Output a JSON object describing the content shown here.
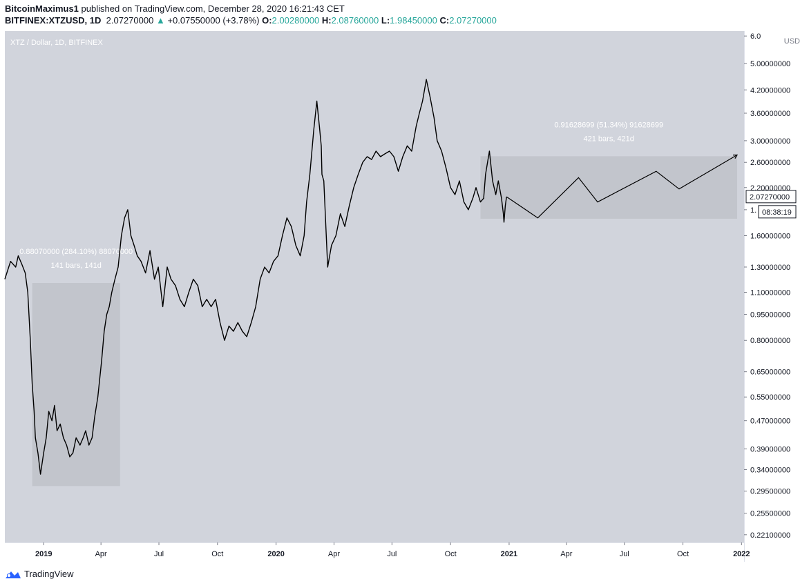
{
  "header": {
    "author": "BitcoinMaximus1",
    "published": "published on TradingView.com, December 28, 2020 16:21:43 CET"
  },
  "ohlc": {
    "symbol": "BITFINEX:XTZUSD, 1D",
    "last": "2.07270000",
    "change": "+0.07550000 (+3.78%)",
    "o_label": "O:",
    "o": "2.00280000",
    "h_label": "H:",
    "h": "2.08760000",
    "l_label": "L:",
    "l": "1.98450000",
    "c_label": "C:",
    "c": "2.07270000"
  },
  "footer": {
    "brand": "TradingView"
  },
  "colors": {
    "plot_bg": "#d1d4dc",
    "line": "#000000",
    "box": "#bfc2c9",
    "up": "#26a69a",
    "measure_text": "#ffffff"
  },
  "chart_data": {
    "type": "line",
    "title": "XTZ / Dollar, 1D, BITFINEX",
    "currency": "USD",
    "scale": "log",
    "ylim": [
      0.21,
      6.2
    ],
    "xlim": [
      "2018-11-01",
      "2022-01-05"
    ],
    "x_ticks": [
      {
        "date": "2019-01-01",
        "label": "2019"
      },
      {
        "date": "2019-04-01",
        "label": "Apr"
      },
      {
        "date": "2019-07-01",
        "label": "Jul"
      },
      {
        "date": "2019-10-01",
        "label": "Oct"
      },
      {
        "date": "2020-01-01",
        "label": "2020"
      },
      {
        "date": "2020-04-01",
        "label": "Apr"
      },
      {
        "date": "2020-07-01",
        "label": "Jul"
      },
      {
        "date": "2020-10-01",
        "label": "Oct"
      },
      {
        "date": "2021-01-01",
        "label": "2021"
      },
      {
        "date": "2021-04-01",
        "label": "Apr"
      },
      {
        "date": "2021-07-01",
        "label": "Jul"
      },
      {
        "date": "2021-10-01",
        "label": "Oct"
      },
      {
        "date": "2022-01-01",
        "label": "2022"
      }
    ],
    "y_ticks": [
      {
        "value": 6.0,
        "label": "6.0"
      },
      {
        "value": 5.0,
        "label": "5.00000000"
      },
      {
        "value": 4.2,
        "label": "4.20000000"
      },
      {
        "value": 3.6,
        "label": "3.60000000"
      },
      {
        "value": 3.0,
        "label": "3.00000000"
      },
      {
        "value": 2.6,
        "label": "2.60000000"
      },
      {
        "value": 2.2,
        "label": "2.20000000"
      },
      {
        "value": 1.9,
        "label": "1."
      },
      {
        "value": 1.6,
        "label": "1.60000000"
      },
      {
        "value": 1.3,
        "label": "1.30000000"
      },
      {
        "value": 1.1,
        "label": "1.10000000"
      },
      {
        "value": 0.95,
        "label": "0.95000000"
      },
      {
        "value": 0.8,
        "label": "0.80000000"
      },
      {
        "value": 0.65,
        "label": "0.65000000"
      },
      {
        "value": 0.55,
        "label": "0.55000000"
      },
      {
        "value": 0.47,
        "label": "0.47000000"
      },
      {
        "value": 0.39,
        "label": "0.39000000"
      },
      {
        "value": 0.34,
        "label": "0.34000000"
      },
      {
        "value": 0.295,
        "label": "0.29500000"
      },
      {
        "value": 0.255,
        "label": "0.25500000"
      },
      {
        "value": 0.221,
        "label": "0.22100000"
      }
    ],
    "price_label": {
      "value": 2.0727,
      "text": "2.07270000"
    },
    "countdown": "08:38:19",
    "series": [
      {
        "x": [
          "2018-11-01",
          "2018-11-10",
          "2018-11-18",
          "2018-11-22",
          "2018-11-28",
          "2018-12-03",
          "2018-12-07",
          "2018-12-11",
          "2018-12-14",
          "2018-12-17",
          "2018-12-19",
          "2018-12-23",
          "2018-12-27",
          "2019-01-01",
          "2019-01-05",
          "2019-01-09",
          "2019-01-14",
          "2019-01-18",
          "2019-01-22",
          "2019-01-27",
          "2019-02-01",
          "2019-02-06",
          "2019-02-11",
          "2019-02-16",
          "2019-02-21",
          "2019-02-27",
          "2019-03-04",
          "2019-03-08",
          "2019-03-13",
          "2019-03-18",
          "2019-03-22",
          "2019-03-27",
          "2019-04-02",
          "2019-04-06",
          "2019-04-10",
          "2019-04-14",
          "2019-04-18",
          "2019-04-23",
          "2019-04-28",
          "2019-05-03",
          "2019-05-08",
          "2019-05-13",
          "2019-05-18",
          "2019-05-23",
          "2019-05-28",
          "2019-06-03",
          "2019-06-10",
          "2019-06-17",
          "2019-06-24",
          "2019-06-30",
          "2019-07-07",
          "2019-07-14",
          "2019-07-20",
          "2019-07-27",
          "2019-08-03",
          "2019-08-10",
          "2019-08-17",
          "2019-08-24",
          "2019-08-31",
          "2019-09-07",
          "2019-09-14",
          "2019-09-21",
          "2019-09-28",
          "2019-10-05",
          "2019-10-12",
          "2019-10-19",
          "2019-10-26",
          "2019-11-02",
          "2019-11-09",
          "2019-11-16",
          "2019-11-23",
          "2019-11-30",
          "2019-12-07",
          "2019-12-14",
          "2019-12-21",
          "2019-12-28",
          "2020-01-04",
          "2020-01-11",
          "2020-01-18",
          "2020-01-25",
          "2020-02-01",
          "2020-02-08",
          "2020-02-14",
          "2020-02-18",
          "2020-02-23",
          "2020-02-29",
          "2020-03-05",
          "2020-03-09",
          "2020-03-12",
          "2020-03-13",
          "2020-03-16",
          "2020-03-22",
          "2020-03-28",
          "2020-04-04",
          "2020-04-11",
          "2020-04-18",
          "2020-04-25",
          "2020-05-02",
          "2020-05-09",
          "2020-05-16",
          "2020-05-23",
          "2020-05-30",
          "2020-06-06",
          "2020-06-13",
          "2020-06-20",
          "2020-06-27",
          "2020-07-04",
          "2020-07-11",
          "2020-07-18",
          "2020-07-25",
          "2020-08-01",
          "2020-08-08",
          "2020-08-13",
          "2020-08-18",
          "2020-08-24",
          "2020-08-30",
          "2020-09-05",
          "2020-09-10",
          "2020-09-17",
          "2020-09-24",
          "2020-10-01",
          "2020-10-08",
          "2020-10-15",
          "2020-10-22",
          "2020-10-29",
          "2020-11-05",
          "2020-11-10",
          "2020-11-17",
          "2020-11-22",
          "2020-11-25",
          "2020-12-01",
          "2020-12-06",
          "2020-12-11",
          "2020-12-15",
          "2020-12-20",
          "2020-12-23",
          "2020-12-24",
          "2020-12-26",
          "2020-12-28"
        ],
        "values": [
          1.2,
          1.35,
          1.3,
          1.4,
          1.32,
          1.25,
          1.1,
          0.8,
          0.6,
          0.5,
          0.42,
          0.38,
          0.33,
          0.38,
          0.42,
          0.5,
          0.47,
          0.52,
          0.44,
          0.46,
          0.42,
          0.4,
          0.37,
          0.38,
          0.42,
          0.4,
          0.42,
          0.44,
          0.4,
          0.42,
          0.48,
          0.55,
          0.7,
          0.85,
          0.95,
          1.0,
          1.1,
          1.2,
          1.3,
          1.6,
          1.8,
          1.9,
          1.6,
          1.5,
          1.4,
          1.35,
          1.25,
          1.45,
          1.2,
          1.3,
          1.0,
          1.3,
          1.2,
          1.15,
          1.05,
          1.0,
          1.1,
          1.2,
          1.15,
          1.0,
          1.05,
          1.0,
          1.05,
          0.9,
          0.8,
          0.88,
          0.85,
          0.9,
          0.85,
          0.82,
          0.9,
          1.0,
          1.2,
          1.3,
          1.25,
          1.35,
          1.4,
          1.6,
          1.8,
          1.7,
          1.5,
          1.4,
          1.6,
          2.0,
          2.4,
          3.2,
          3.9,
          3.3,
          2.9,
          2.4,
          2.3,
          1.3,
          1.5,
          1.6,
          1.85,
          1.7,
          1.95,
          2.2,
          2.4,
          2.6,
          2.7,
          2.65,
          2.8,
          2.7,
          2.75,
          2.8,
          2.7,
          2.45,
          2.7,
          2.9,
          2.8,
          3.3,
          3.6,
          3.9,
          4.5,
          4.0,
          3.5,
          3.0,
          2.8,
          2.5,
          2.2,
          2.1,
          2.3,
          2.0,
          1.9,
          2.05,
          2.2,
          2.0,
          2.05,
          2.4,
          2.8,
          2.3,
          2.1,
          2.3,
          2.05,
          1.85,
          1.75,
          1.95,
          2.07
        ]
      }
    ],
    "measure_boxes": [
      {
        "x0": "2018-12-14",
        "x1": "2019-05-01",
        "y0": 0.305,
        "y1": 1.17,
        "label_line1": "0.88070000 (284.10%) 88070000",
        "label_line2": "141 bars, 141d"
      },
      {
        "x0": "2020-11-17",
        "x1": "2022-01-05",
        "y0": 1.79,
        "y1": 2.707,
        "label_line1": "0.91628699 (51.34%) 91628699",
        "label_line2": "421 bars, 421d"
      }
    ],
    "projection": {
      "x": [
        "2020-12-28",
        "2021-02-15",
        "2021-04-20",
        "2021-05-20",
        "2021-08-20",
        "2021-09-25",
        "2022-01-05"
      ],
      "values": [
        2.07,
        1.8,
        2.35,
        2.0,
        2.45,
        2.18,
        2.73
      ]
    }
  }
}
